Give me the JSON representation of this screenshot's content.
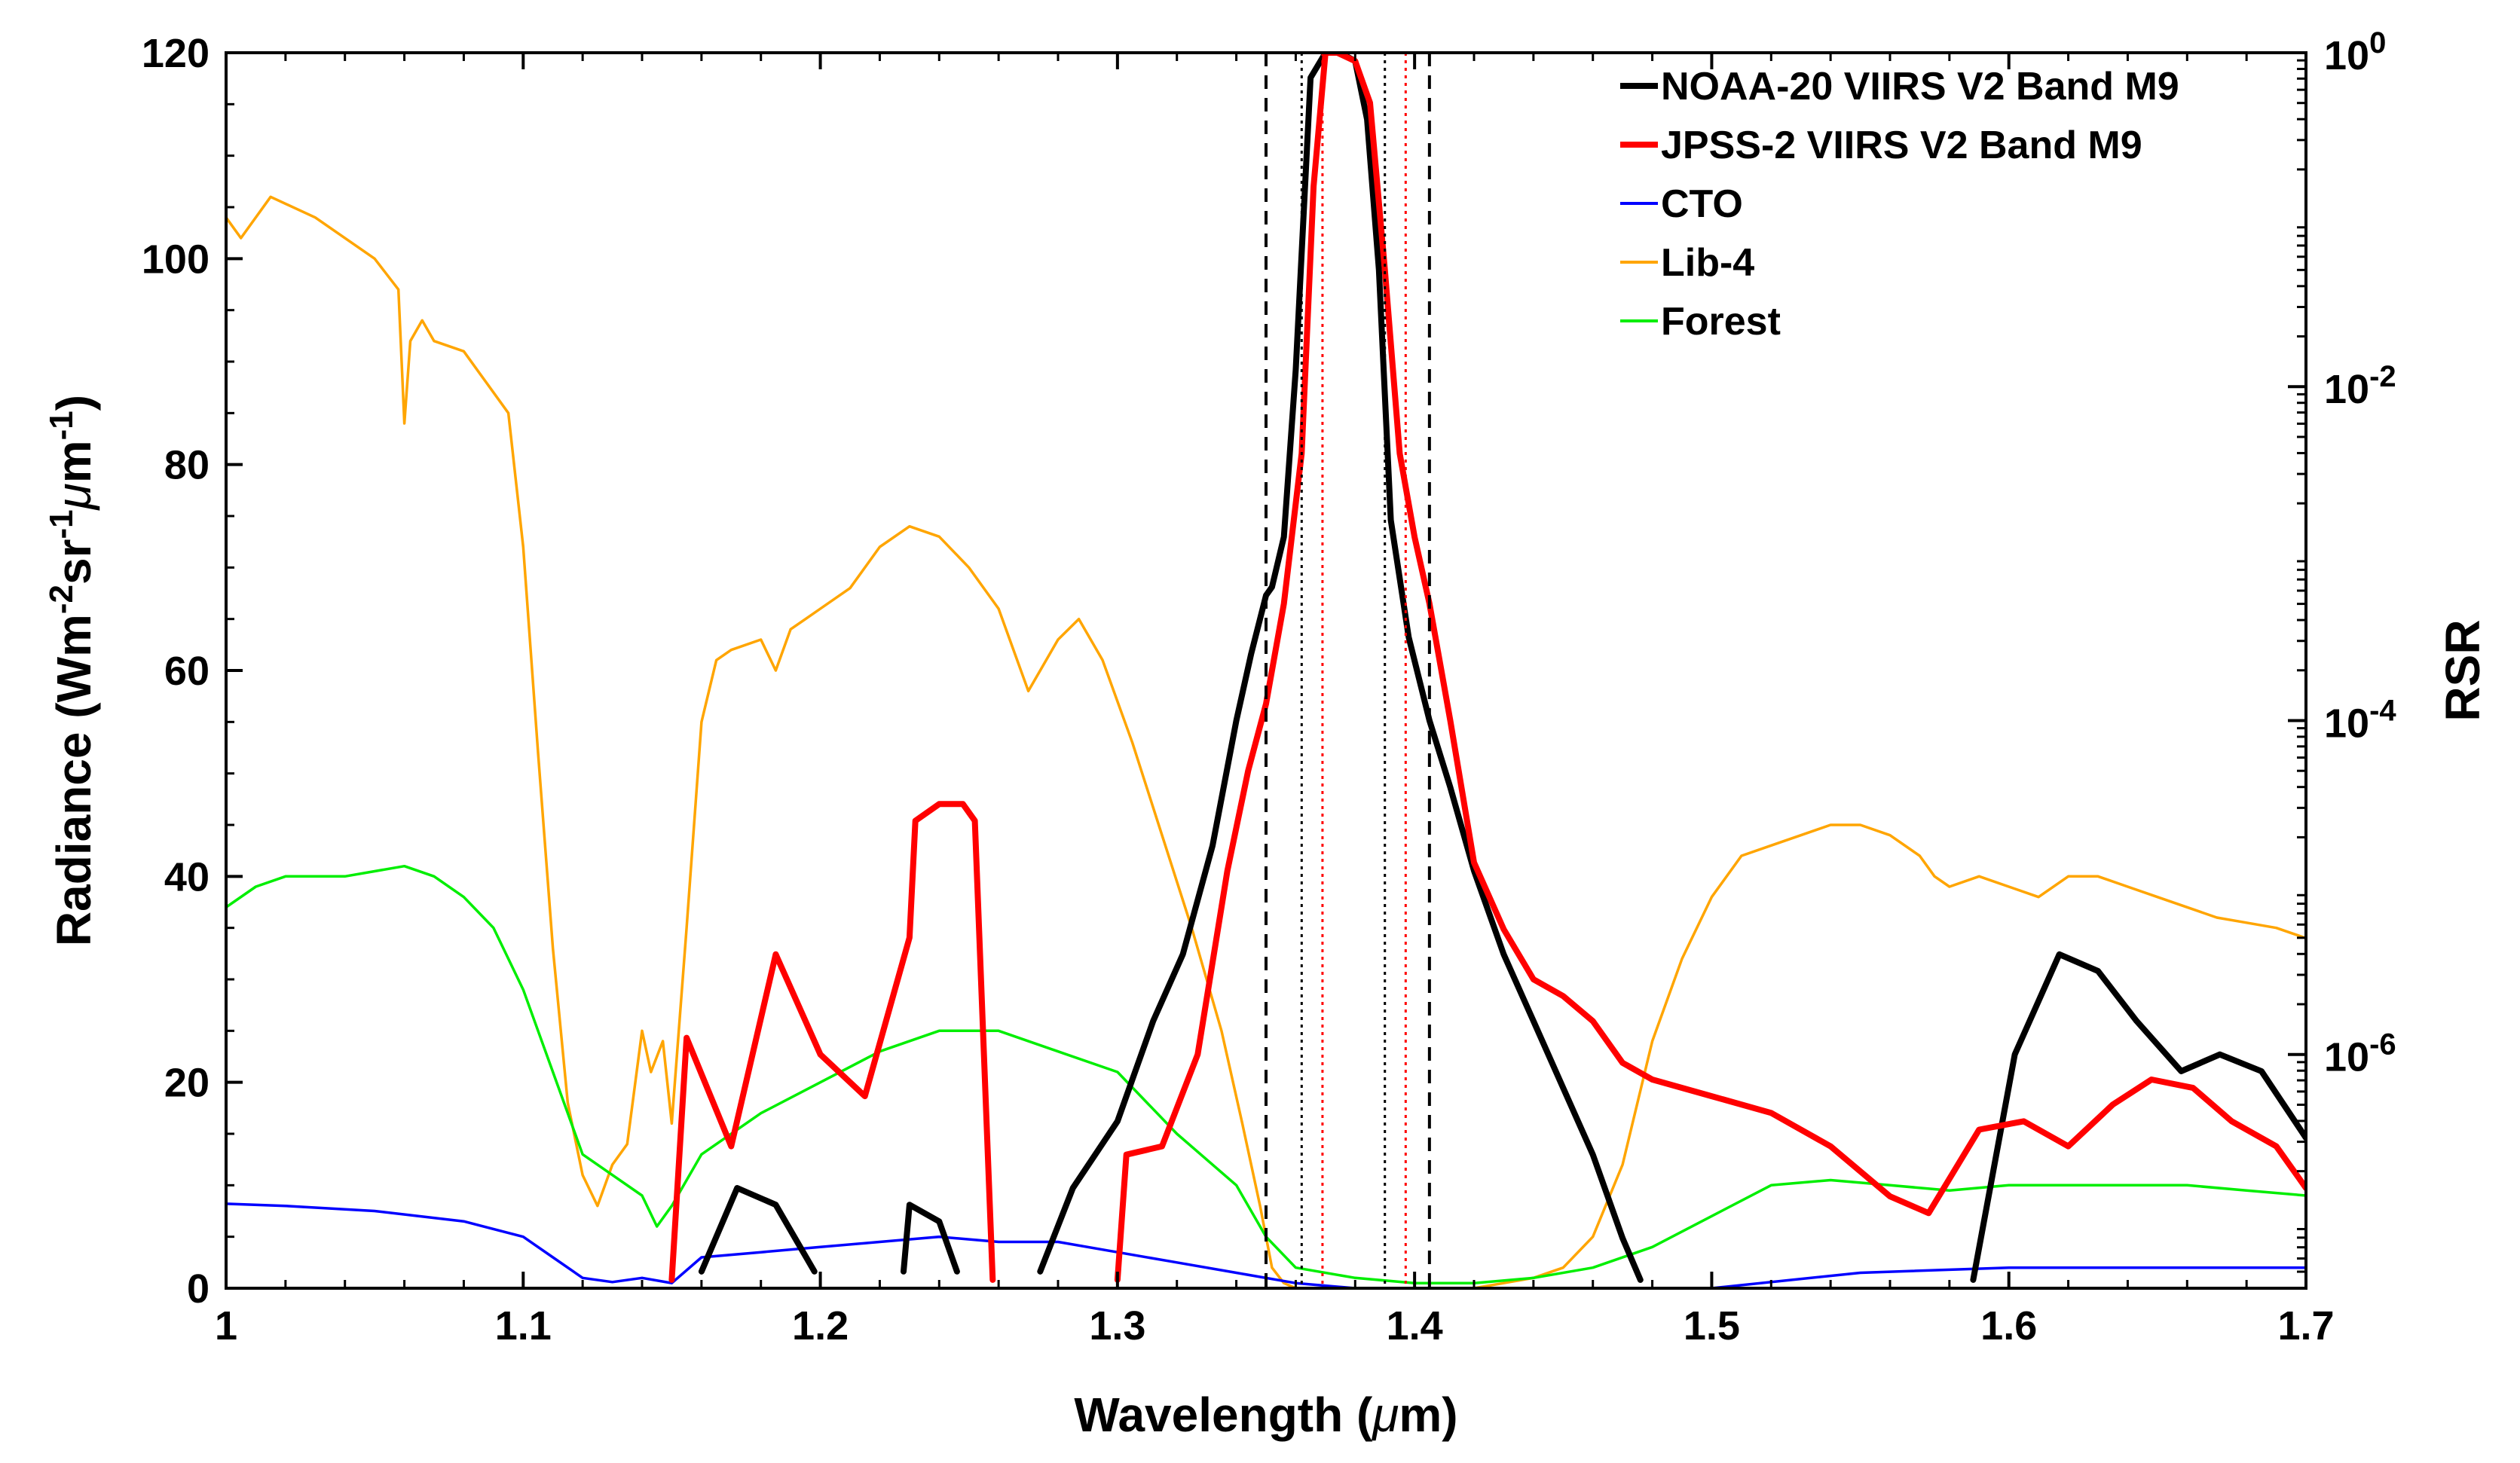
{
  "chart_data": {
    "type": "line",
    "xlabel": {
      "main": "Wavelength (",
      "mu": "μ",
      "unit": "m)"
    },
    "ylabel_left": {
      "a": "Radiance (Wm",
      "b": "-2",
      "c": "sr",
      "d": "-1",
      "mu": "μ",
      "e": "m",
      "f": "-1",
      "g": ")"
    },
    "ylabel_right": "RSR",
    "xlim": [
      1.0,
      1.7
    ],
    "ylim_left": [
      0,
      120
    ],
    "ylim_right_log10": [
      -7.4,
      0
    ],
    "x_ticks": [
      "1",
      "1.1",
      "1.2",
      "1.3",
      "1.4",
      "1.5",
      "1.6",
      "1.7"
    ],
    "x_tick_values": [
      1.0,
      1.1,
      1.2,
      1.3,
      1.4,
      1.5,
      1.6,
      1.7
    ],
    "y_left_ticks": [
      "0",
      "20",
      "40",
      "60",
      "80",
      "100",
      "120"
    ],
    "y_left_tick_values": [
      0,
      20,
      40,
      60,
      80,
      100,
      120
    ],
    "y_right_ticks": [
      {
        "base": "10",
        "exp": "0",
        "log10": 0
      },
      {
        "base": "10",
        "exp": "-2",
        "log10": -2
      },
      {
        "base": "10",
        "exp": "-4",
        "log10": -4
      },
      {
        "base": "10",
        "exp": "-6",
        "log10": -6
      }
    ],
    "legend": [
      {
        "label": "NOAA-20 VIIRS V2 Band M9",
        "color": "#000000"
      },
      {
        "label": "JPSS-2 VIIRS V2 Band M9",
        "color": "#ff0000"
      },
      {
        "label": "CTO",
        "color": "#0000ff"
      },
      {
        "label": "Lib-4",
        "color": "#ffa500"
      },
      {
        "label": "Forest",
        "color": "#00ee00"
      }
    ],
    "series": [
      {
        "name": "Lib-4",
        "axis": "left",
        "color": "#ffa500",
        "x": [
          1.0,
          1.005,
          1.015,
          1.03,
          1.05,
          1.058,
          1.06,
          1.062,
          1.066,
          1.07,
          1.08,
          1.095,
          1.1,
          1.105,
          1.11,
          1.115,
          1.12,
          1.125,
          1.13,
          1.135,
          1.14,
          1.143,
          1.147,
          1.15,
          1.155,
          1.16,
          1.165,
          1.17,
          1.18,
          1.185,
          1.19,
          1.195,
          1.2,
          1.21,
          1.22,
          1.23,
          1.24,
          1.25,
          1.26,
          1.27,
          1.28,
          1.287,
          1.295,
          1.305,
          1.315,
          1.325,
          1.335,
          1.342,
          1.348,
          1.352,
          1.356,
          1.36,
          1.38,
          1.4,
          1.42,
          1.43,
          1.44,
          1.45,
          1.46,
          1.47,
          1.48,
          1.49,
          1.5,
          1.51,
          1.52,
          1.53,
          1.54,
          1.55,
          1.56,
          1.57,
          1.575,
          1.58,
          1.59,
          1.6,
          1.61,
          1.62,
          1.63,
          1.64,
          1.65,
          1.66,
          1.67,
          1.68,
          1.69,
          1.7
        ],
        "y": [
          104,
          102,
          106,
          104,
          100,
          97,
          84,
          92,
          94,
          92,
          91,
          85,
          72,
          52,
          33,
          18,
          11,
          8,
          12,
          14,
          25,
          21,
          24,
          16,
          35,
          55,
          61,
          62,
          63,
          60,
          64,
          65,
          66,
          68,
          72,
          74,
          73,
          70,
          66,
          58,
          63,
          65,
          61,
          53,
          44,
          35,
          25,
          16,
          8,
          2,
          0.5,
          0,
          0,
          0,
          0,
          0.5,
          1,
          2,
          5,
          12,
          24,
          32,
          38,
          42,
          43,
          44,
          45,
          45,
          44,
          42,
          40,
          39,
          40,
          39,
          38,
          40,
          40,
          39,
          38,
          37,
          36,
          35.5,
          35,
          34
        ]
      },
      {
        "name": "Forest",
        "axis": "left",
        "color": "#00ee00",
        "x": [
          1.0,
          1.01,
          1.02,
          1.04,
          1.06,
          1.07,
          1.08,
          1.09,
          1.1,
          1.11,
          1.12,
          1.13,
          1.14,
          1.145,
          1.15,
          1.16,
          1.18,
          1.2,
          1.22,
          1.24,
          1.26,
          1.28,
          1.3,
          1.32,
          1.34,
          1.35,
          1.36,
          1.38,
          1.4,
          1.42,
          1.44,
          1.46,
          1.48,
          1.5,
          1.52,
          1.54,
          1.56,
          1.58,
          1.6,
          1.62,
          1.64,
          1.66,
          1.68,
          1.7
        ],
        "y": [
          37,
          39,
          40,
          40,
          41,
          40,
          38,
          35,
          29,
          21,
          13,
          11,
          9,
          6,
          8,
          13,
          17,
          20,
          23,
          25,
          25,
          23,
          21,
          15,
          10,
          5,
          2,
          1,
          0.5,
          0.5,
          1,
          2,
          4,
          7,
          10,
          10.5,
          10,
          9.5,
          10,
          10,
          10,
          10,
          9.5,
          9
        ]
      },
      {
        "name": "CTO",
        "axis": "left",
        "color": "#0000ff",
        "x": [
          1.0,
          1.02,
          1.05,
          1.08,
          1.1,
          1.11,
          1.12,
          1.13,
          1.14,
          1.15,
          1.16,
          1.18,
          1.2,
          1.22,
          1.24,
          1.26,
          1.28,
          1.3,
          1.32,
          1.34,
          1.36,
          1.38,
          1.4,
          1.45,
          1.5,
          1.55,
          1.6,
          1.65,
          1.7
        ],
        "y": [
          8.2,
          8,
          7.5,
          6.5,
          5,
          3,
          1,
          0.6,
          1,
          0.5,
          3,
          3.5,
          4,
          4.5,
          5,
          4.5,
          4.5,
          3.5,
          2.5,
          1.5,
          0.5,
          0,
          0,
          0,
          0,
          1.5,
          2,
          2,
          2
        ]
      },
      {
        "name": "NOAA-20 VIIRS V2 Band M9",
        "axis": "right",
        "color": "#000000",
        "segments": [
          {
            "x": [
              1.16,
              1.172,
              1.185,
              1.198
            ],
            "logy": [
              -7.3,
              -6.8,
              -6.9,
              -7.3
            ]
          },
          {
            "x": [
              1.228,
              1.23,
              1.24,
              1.246
            ],
            "logy": [
              -7.3,
              -6.9,
              -7.0,
              -7.3
            ]
          },
          {
            "x": [
              1.274,
              1.285,
              1.3,
              1.312,
              1.322,
              1.332,
              1.34,
              1.345,
              1.35,
              1.352,
              1.356,
              1.36,
              1.365,
              1.37,
              1.375,
              1.38,
              1.384,
              1.388,
              1.392,
              1.398,
              1.405,
              1.412,
              1.42,
              1.43,
              1.44,
              1.45,
              1.46,
              1.47,
              1.476
            ],
            "logy": [
              -7.3,
              -6.8,
              -6.4,
              -5.8,
              -5.4,
              -4.75,
              -4.0,
              -3.6,
              -3.25,
              -3.2,
              -2.9,
              -1.9,
              -0.15,
              0,
              0,
              -0.05,
              -0.4,
              -1.3,
              -2.8,
              -3.5,
              -4.0,
              -4.4,
              -4.9,
              -5.4,
              -5.8,
              -6.2,
              -6.6,
              -7.1,
              -7.35
            ]
          },
          {
            "x": [
              1.588,
              1.602,
              1.617,
              1.63,
              1.643,
              1.658,
              1.671,
              1.685,
              1.7
            ],
            "logy": [
              -7.35,
              -6.0,
              -5.4,
              -5.5,
              -5.8,
              -6.1,
              -6.0,
              -6.1,
              -6.5
            ]
          }
        ]
      },
      {
        "name": "JPSS-2 VIIRS V2 Band M9",
        "axis": "right",
        "color": "#ff0000",
        "segments": [
          {
            "x": [
              1.15,
              1.155,
              1.17,
              1.185,
              1.2,
              1.215,
              1.23,
              1.232,
              1.24,
              1.248,
              1.252,
              1.258
            ],
            "logy": [
              -7.35,
              -5.9,
              -6.55,
              -5.4,
              -6.0,
              -6.25,
              -5.3,
              -4.6,
              -4.5,
              -4.5,
              -4.6,
              -7.35
            ]
          },
          {
            "x": [
              1.3,
              1.303,
              1.315,
              1.327,
              1.337,
              1.344,
              1.35,
              1.356,
              1.362,
              1.366,
              1.37,
              1.374,
              1.38,
              1.385,
              1.39,
              1.395,
              1.4,
              1.405,
              1.412,
              1.42,
              1.43,
              1.44,
              1.45,
              1.46,
              1.47,
              1.48,
              1.5,
              1.52,
              1.54,
              1.56,
              1.573,
              1.59,
              1.605,
              1.62,
              1.635,
              1.648,
              1.662,
              1.675,
              1.69,
              1.7
            ],
            "logy": [
              -7.35,
              -6.6,
              -6.55,
              -6.0,
              -4.9,
              -4.3,
              -3.9,
              -3.3,
              -2.4,
              -0.8,
              0,
              0,
              -0.05,
              -0.3,
              -1.3,
              -2.4,
              -2.9,
              -3.3,
              -4.0,
              -4.85,
              -5.25,
              -5.55,
              -5.65,
              -5.8,
              -6.05,
              -6.15,
              -6.25,
              -6.35,
              -6.55,
              -6.85,
              -6.95,
              -6.45,
              -6.4,
              -6.55,
              -6.3,
              -6.15,
              -6.2,
              -6.4,
              -6.55,
              -6.8
            ]
          }
        ]
      }
    ],
    "vertical_lines": [
      {
        "x": 1.35,
        "color": "#000000",
        "style": "dashed"
      },
      {
        "x": 1.405,
        "color": "#000000",
        "style": "dashed"
      },
      {
        "x": 1.362,
        "color": "#000000",
        "style": "dotted"
      },
      {
        "x": 1.39,
        "color": "#000000",
        "style": "dotted"
      },
      {
        "x": 1.369,
        "color": "#ff0000",
        "style": "dotted"
      },
      {
        "x": 1.397,
        "color": "#ff0000",
        "style": "dotted"
      }
    ]
  }
}
